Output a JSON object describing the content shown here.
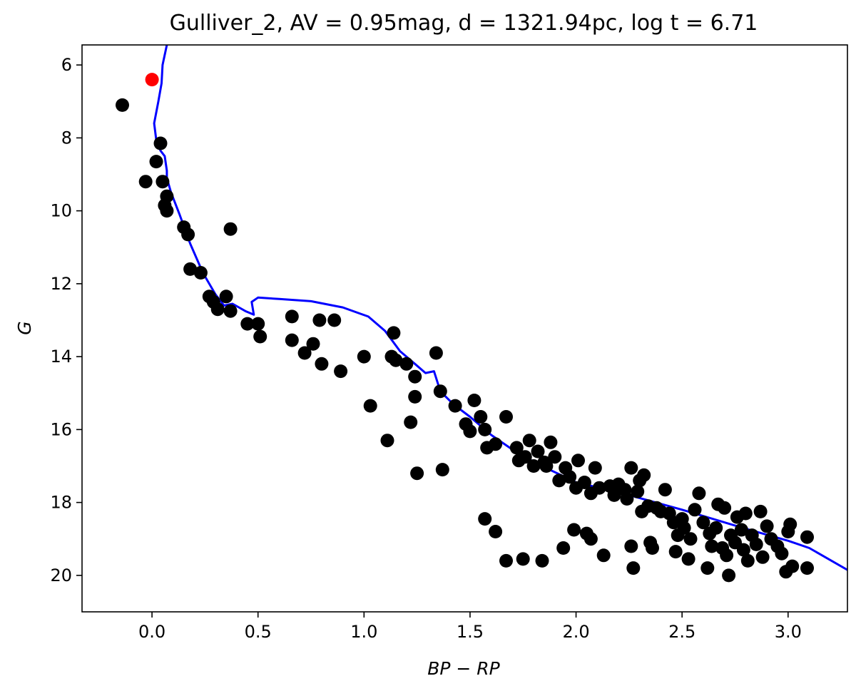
{
  "chart_data": {
    "type": "scatter",
    "title": "Gulliver_2, AV = 0.95mag, d = 1321.94pc, log t = 6.71",
    "xlabel": "BP − RP",
    "ylabel": "G",
    "xlim": [
      -0.33,
      3.28
    ],
    "ylim": [
      21.0,
      5.45
    ],
    "y_inverted": true,
    "grid": false,
    "xticks": [
      0.0,
      0.5,
      1.0,
      1.5,
      2.0,
      2.5,
      3.0
    ],
    "xtick_labels": [
      "0.0",
      "0.5",
      "1.0",
      "1.5",
      "2.0",
      "2.5",
      "3.0"
    ],
    "yticks": [
      6,
      8,
      10,
      12,
      14,
      16,
      18,
      20
    ],
    "ytick_labels": [
      "6",
      "8",
      "10",
      "12",
      "14",
      "16",
      "18",
      "20"
    ],
    "colors": {
      "members": "#000000",
      "highlight": "#ff0000",
      "isochrone": "#0000ff"
    },
    "series": [
      {
        "kind": "scatter",
        "color": "#000000",
        "points": [
          [
            -0.14,
            7.1
          ],
          [
            0.04,
            8.15
          ],
          [
            0.02,
            8.65
          ],
          [
            -0.03,
            9.2
          ],
          [
            0.05,
            9.2
          ],
          [
            0.07,
            9.6
          ],
          [
            0.06,
            9.85
          ],
          [
            0.07,
            10.0
          ],
          [
            0.15,
            10.45
          ],
          [
            0.17,
            10.65
          ],
          [
            0.37,
            10.5
          ],
          [
            0.18,
            11.6
          ],
          [
            0.23,
            11.7
          ],
          [
            0.27,
            12.35
          ],
          [
            0.29,
            12.5
          ],
          [
            0.31,
            12.7
          ],
          [
            0.35,
            12.35
          ],
          [
            0.37,
            12.75
          ],
          [
            0.45,
            13.1
          ],
          [
            0.5,
            13.1
          ],
          [
            0.51,
            13.45
          ],
          [
            0.66,
            12.9
          ],
          [
            0.66,
            13.55
          ],
          [
            0.72,
            13.9
          ],
          [
            0.76,
            13.65
          ],
          [
            0.8,
            14.2
          ],
          [
            0.79,
            13.0
          ],
          [
            0.86,
            13.0
          ],
          [
            0.89,
            14.4
          ],
          [
            1.0,
            14.0
          ],
          [
            1.03,
            15.35
          ],
          [
            1.11,
            16.3
          ],
          [
            1.13,
            14.0
          ],
          [
            1.14,
            13.35
          ],
          [
            1.15,
            14.1
          ],
          [
            1.2,
            14.2
          ],
          [
            1.22,
            15.8
          ],
          [
            1.24,
            15.1
          ],
          [
            1.24,
            14.55
          ],
          [
            1.25,
            17.2
          ],
          [
            1.34,
            13.9
          ],
          [
            1.36,
            14.95
          ],
          [
            1.37,
            17.1
          ],
          [
            1.43,
            15.35
          ],
          [
            1.48,
            15.85
          ],
          [
            1.5,
            16.05
          ],
          [
            1.52,
            15.2
          ],
          [
            1.55,
            15.65
          ],
          [
            1.57,
            16.0
          ],
          [
            1.58,
            16.5
          ],
          [
            1.57,
            18.45
          ],
          [
            1.62,
            18.8
          ],
          [
            1.62,
            16.4
          ],
          [
            1.67,
            19.6
          ],
          [
            1.67,
            15.65
          ],
          [
            1.72,
            16.5
          ],
          [
            1.73,
            16.85
          ],
          [
            1.75,
            19.55
          ],
          [
            1.76,
            16.75
          ],
          [
            1.78,
            16.3
          ],
          [
            1.8,
            17.0
          ],
          [
            1.82,
            16.6
          ],
          [
            1.84,
            19.6
          ],
          [
            1.85,
            16.9
          ],
          [
            1.86,
            17.0
          ],
          [
            1.88,
            16.35
          ],
          [
            1.9,
            16.75
          ],
          [
            1.92,
            17.4
          ],
          [
            1.94,
            19.25
          ],
          [
            1.95,
            17.05
          ],
          [
            1.97,
            17.3
          ],
          [
            1.99,
            18.75
          ],
          [
            2.0,
            17.6
          ],
          [
            2.01,
            16.85
          ],
          [
            2.04,
            17.45
          ],
          [
            2.05,
            18.85
          ],
          [
            2.07,
            17.75
          ],
          [
            2.07,
            19.0
          ],
          [
            2.09,
            17.05
          ],
          [
            2.11,
            17.6
          ],
          [
            2.13,
            19.45
          ],
          [
            2.16,
            17.55
          ],
          [
            2.18,
            17.8
          ],
          [
            2.2,
            17.5
          ],
          [
            2.23,
            17.65
          ],
          [
            2.24,
            17.9
          ],
          [
            2.26,
            17.05
          ],
          [
            2.26,
            19.2
          ],
          [
            2.27,
            19.8
          ],
          [
            2.29,
            17.7
          ],
          [
            2.3,
            17.4
          ],
          [
            2.31,
            18.25
          ],
          [
            2.32,
            17.25
          ],
          [
            2.34,
            18.1
          ],
          [
            2.35,
            19.1
          ],
          [
            2.36,
            19.25
          ],
          [
            2.38,
            18.15
          ],
          [
            2.4,
            18.25
          ],
          [
            2.42,
            17.65
          ],
          [
            2.44,
            18.3
          ],
          [
            2.46,
            18.55
          ],
          [
            2.47,
            19.35
          ],
          [
            2.48,
            18.9
          ],
          [
            2.5,
            18.45
          ],
          [
            2.51,
            18.7
          ],
          [
            2.53,
            19.55
          ],
          [
            2.54,
            19.0
          ],
          [
            2.56,
            18.2
          ],
          [
            2.58,
            17.75
          ],
          [
            2.6,
            18.55
          ],
          [
            2.62,
            19.8
          ],
          [
            2.63,
            18.85
          ],
          [
            2.64,
            19.2
          ],
          [
            2.66,
            18.7
          ],
          [
            2.67,
            18.05
          ],
          [
            2.69,
            19.25
          ],
          [
            2.7,
            18.15
          ],
          [
            2.71,
            19.45
          ],
          [
            2.72,
            20.0
          ],
          [
            2.73,
            18.9
          ],
          [
            2.75,
            19.1
          ],
          [
            2.76,
            18.4
          ],
          [
            2.78,
            18.75
          ],
          [
            2.79,
            19.3
          ],
          [
            2.8,
            18.3
          ],
          [
            2.81,
            19.6
          ],
          [
            2.83,
            18.9
          ],
          [
            2.85,
            19.15
          ],
          [
            2.87,
            18.25
          ],
          [
            2.88,
            19.5
          ],
          [
            2.9,
            18.65
          ],
          [
            2.92,
            19.0
          ],
          [
            2.95,
            19.2
          ],
          [
            2.97,
            19.4
          ],
          [
            2.99,
            19.9
          ],
          [
            3.0,
            18.8
          ],
          [
            3.01,
            18.6
          ],
          [
            3.02,
            19.75
          ],
          [
            3.09,
            18.95
          ],
          [
            3.09,
            19.8
          ]
        ]
      },
      {
        "kind": "scatter",
        "color": "#ff0000",
        "points": [
          [
            0.0,
            6.4
          ]
        ]
      },
      {
        "kind": "line",
        "color": "#0000ff",
        "points": [
          [
            0.07,
            5.45
          ],
          [
            0.05,
            6.0
          ],
          [
            0.045,
            6.5
          ],
          [
            0.03,
            7.0
          ],
          [
            0.01,
            7.6
          ],
          [
            0.02,
            8.05
          ],
          [
            0.04,
            8.35
          ],
          [
            0.06,
            8.5
          ],
          [
            0.07,
            8.9
          ],
          [
            0.07,
            9.1
          ],
          [
            0.09,
            9.5
          ],
          [
            0.13,
            10.1
          ],
          [
            0.18,
            10.9
          ],
          [
            0.24,
            11.7
          ],
          [
            0.3,
            12.3
          ],
          [
            0.34,
            12.6
          ],
          [
            0.38,
            12.55
          ],
          [
            0.44,
            12.75
          ],
          [
            0.48,
            12.85
          ],
          [
            0.47,
            12.5
          ],
          [
            0.5,
            12.38
          ],
          [
            0.6,
            12.42
          ],
          [
            0.75,
            12.48
          ],
          [
            0.9,
            12.65
          ],
          [
            1.02,
            12.9
          ],
          [
            1.1,
            13.3
          ],
          [
            1.17,
            13.85
          ],
          [
            1.24,
            14.2
          ],
          [
            1.29,
            14.45
          ],
          [
            1.33,
            14.4
          ],
          [
            1.36,
            14.95
          ],
          [
            1.42,
            15.3
          ],
          [
            1.5,
            15.65
          ],
          [
            1.6,
            16.15
          ],
          [
            1.7,
            16.55
          ],
          [
            1.82,
            16.95
          ],
          [
            1.93,
            17.25
          ],
          [
            2.0,
            17.45
          ],
          [
            2.2,
            17.72
          ],
          [
            2.5,
            18.2
          ],
          [
            2.8,
            18.72
          ],
          [
            3.0,
            19.05
          ],
          [
            3.1,
            19.25
          ],
          [
            3.28,
            19.85
          ]
        ]
      }
    ]
  }
}
